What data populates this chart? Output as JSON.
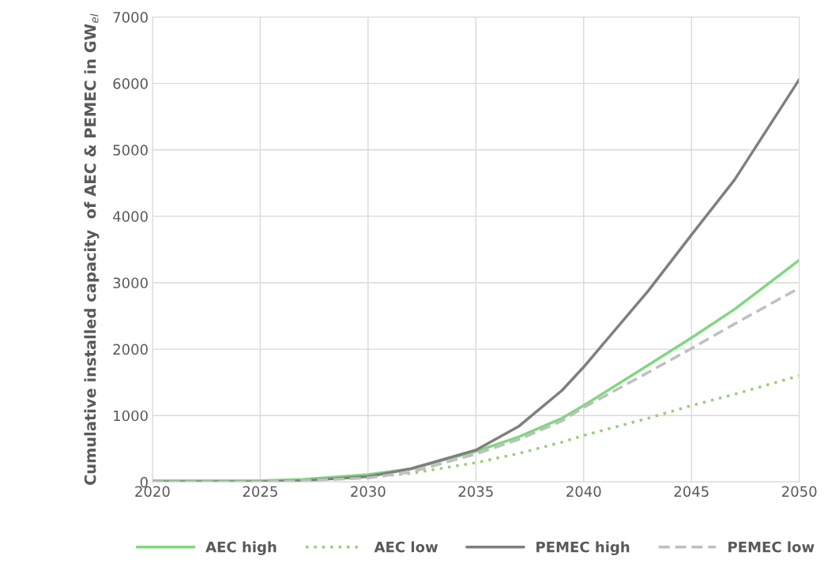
{
  "chart_data": {
    "type": "line",
    "ylabel": "Cumulative installed capacity  of AEC & PEMEC in GW$_{el}$",
    "x": [
      2020,
      2025,
      2027,
      2030,
      2032,
      2035,
      2037,
      2039,
      2040,
      2043,
      2045,
      2047,
      2050
    ],
    "series": [
      {
        "name": "AEC high",
        "color": "#7fd87f",
        "line_style": "solid",
        "values": [
          20,
          20,
          40,
          110,
          200,
          460,
          680,
          960,
          1150,
          1760,
          2170,
          2600,
          3340
        ]
      },
      {
        "name": "AEC low",
        "color": "#9ccc7a",
        "line_style": "dotted",
        "values": [
          0,
          0,
          20,
          70,
          130,
          290,
          430,
          600,
          700,
          960,
          1150,
          1320,
          1600
        ]
      },
      {
        "name": "PEMEC high",
        "color": "#7f7f7f",
        "line_style": "solid",
        "values": [
          0,
          0,
          20,
          80,
          200,
          480,
          840,
          1380,
          1730,
          2880,
          3720,
          4550,
          6060
        ]
      },
      {
        "name": "PEMEC low",
        "color": "#bfbfbf",
        "line_style": "dashed",
        "values": [
          0,
          0,
          20,
          60,
          150,
          420,
          640,
          920,
          1120,
          1650,
          2010,
          2380,
          2920
        ]
      }
    ],
    "xlim": [
      2020,
      2050
    ],
    "xticks": [
      2020,
      2025,
      2030,
      2035,
      2040,
      2045,
      2050
    ],
    "ylim": [
      0,
      7000
    ],
    "yticks": [
      0,
      1000,
      2000,
      3000,
      4000,
      5000,
      6000,
      7000
    ],
    "grid": true,
    "legend": "bottom"
  }
}
